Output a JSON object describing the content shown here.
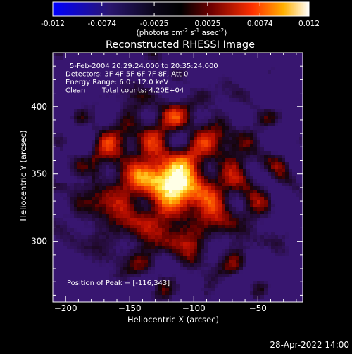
{
  "colorbar": {
    "ticks": [
      "-0.012",
      "-0.0074",
      "-0.0025",
      "0.0025",
      "0.0074",
      "0.012"
    ],
    "tick_values": [
      -0.012,
      -0.0074,
      -0.0025,
      0.0025,
      0.0074,
      0.012
    ],
    "range": [
      -0.012,
      0.012
    ],
    "unit_label": "(photons cm",
    "unit_sup1": "-2",
    "unit_mid": " s",
    "unit_sup2": "-1",
    "unit_mid2": " asec",
    "unit_sup3": "-2",
    "unit_end": ")",
    "colors": [
      "#0000ff",
      "#1a0d52",
      "#000000",
      "#6a0000",
      "#ff2a00",
      "#ffb000",
      "#ffffff"
    ]
  },
  "chart_data": {
    "type": "heatmap",
    "title": "Reconstructed RHESSI Image",
    "xlabel": "Heliocentric X (arcsec)",
    "ylabel": "Heliocentric Y (arcsec)",
    "xlim": [
      -210,
      -15
    ],
    "ylim": [
      255,
      440
    ],
    "x_ticks": [
      -200,
      -150,
      -100,
      -50
    ],
    "y_ticks": [
      300,
      350,
      400
    ],
    "peak": {
      "x": -116,
      "y": 343
    },
    "annotations": {
      "time_range": "5-Feb-2004 20:29:24.000 to 20:35:24.000",
      "detectors": "Detectors: 3F 4F 5F 6F 7F 8F, Att 0",
      "energy": "Energy Range: 6.0 - 12.0 keV",
      "method": "Clean",
      "counts": "Total counts: 4.20E+04",
      "peak_text": "Position of Peak = [-116,343]"
    }
  },
  "footer_date": "28-Apr-2022 14:00"
}
